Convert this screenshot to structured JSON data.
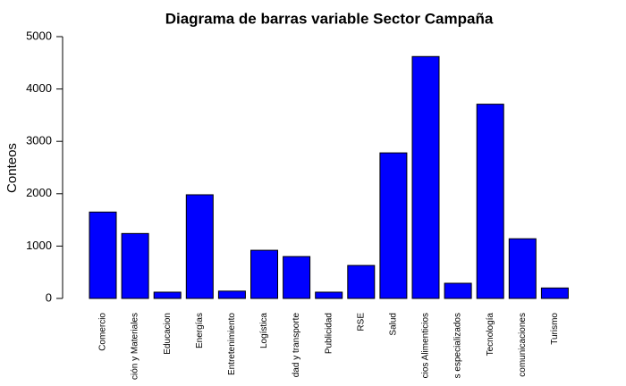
{
  "chart_data": {
    "type": "bar",
    "title": "Diagrama de barras variable Sector Campaña",
    "y_label": "Conteos",
    "categories": [
      "Comercio",
      "ción y Materiales",
      "Educacion",
      "Energías",
      "Entretenimiento",
      "Logística",
      "dad y transporte",
      "Publicidad",
      "RSE",
      "Salud",
      "cios Alimenticios",
      "s especializados",
      "Tecnología",
      "comunicaciones",
      "Turismo"
    ],
    "values": [
      1650,
      1240,
      120,
      1980,
      140,
      920,
      800,
      120,
      630,
      2780,
      4620,
      290,
      3710,
      1140,
      200
    ],
    "color": "#0000ff",
    "ylim": [
      0,
      5000
    ],
    "yticks": [
      0,
      1000,
      2000,
      3000,
      4000,
      5000
    ],
    "grid": false
  }
}
